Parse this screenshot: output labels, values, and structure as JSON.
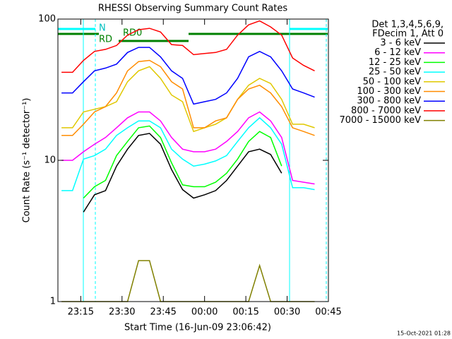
{
  "chart_data": {
    "type": "line",
    "title": "RHESSI Observing Summary Count Rates",
    "ylabel": "Count Rate (s⁻¹ detector⁻¹)",
    "xlabel": "Start Time (16-Jun-09 23:06:42)",
    "legend_header": [
      "Det 1,3,4,5,6,9,",
      "FDecim 1, Att 0"
    ],
    "footer": "15-Oct-2021 01:28",
    "annotations": [
      "N",
      "RD0",
      "RD"
    ],
    "log_y": true,
    "legend": "right",
    "xlim": [
      "23:06:42",
      "00:45"
    ],
    "xticks": [
      "23:15",
      "23:30",
      "23:45",
      "00:00",
      "00:15",
      "00:30",
      "00:45"
    ],
    "ylim": [
      1,
      100
    ],
    "yticks": [
      1,
      10,
      100
    ],
    "x": [
      "23:08",
      "23:12",
      "23:16",
      "23:20",
      "23:24",
      "23:28",
      "23:32",
      "23:36",
      "23:40",
      "23:44",
      "23:48",
      "23:52",
      "23:56",
      "00:00",
      "00:04",
      "00:08",
      "00:12",
      "00:16",
      "00:20",
      "00:24",
      "00:28",
      "00:32",
      "00:36",
      "00:40"
    ],
    "series": [
      {
        "name": "3 - 6 keV",
        "color": "#000000",
        "values": [
          null,
          null,
          4.3,
          5.7,
          6.1,
          9.1,
          12,
          15,
          15.5,
          13,
          8.6,
          6.2,
          5.4,
          5.7,
          6.1,
          7.2,
          9.1,
          11.5,
          12,
          11,
          8.1,
          null,
          null,
          null
        ]
      },
      {
        "name": "6 - 12 keV",
        "color": "#ff00ff",
        "values": [
          10,
          10,
          11.5,
          13,
          14.5,
          17,
          20,
          22,
          22,
          19,
          14.5,
          12,
          11.5,
          11.5,
          12,
          13.6,
          16,
          20,
          22,
          19,
          14.5,
          7.2,
          7,
          6.8
        ]
      },
      {
        "name": "12 - 25 keV",
        "color": "#00ff00",
        "values": [
          null,
          null,
          5.4,
          6.5,
          7.2,
          10.8,
          13.6,
          17,
          17.5,
          14.5,
          9.6,
          6.7,
          6.5,
          6.5,
          7,
          8.1,
          10.2,
          13.6,
          16,
          14.5,
          9.1,
          null,
          null,
          null
        ]
      },
      {
        "name": "25 - 50 keV",
        "color": "#00ffff",
        "values": [
          6.1,
          6.1,
          10.2,
          10.8,
          12,
          15,
          17,
          19,
          19,
          17,
          12,
          10.2,
          9.1,
          9.4,
          9.9,
          10.8,
          13.6,
          17,
          20,
          17,
          13,
          6.4,
          6.4,
          6.2
        ]
      },
      {
        "name": "50 - 100 keV",
        "color": "#e0c800",
        "values": [
          17,
          17,
          22,
          23,
          24,
          26,
          36,
          43,
          46,
          38,
          29,
          26,
          16,
          17,
          18,
          20,
          27,
          34,
          38,
          35,
          27,
          18,
          18,
          17
        ]
      },
      {
        "name": "100 - 300 keV",
        "color": "#ff8c00",
        "values": [
          15,
          15,
          18,
          22,
          24,
          30,
          43,
          50,
          51,
          46,
          36,
          32,
          17,
          17,
          19,
          20,
          27,
          32,
          34,
          30,
          24,
          17,
          16,
          15
        ]
      },
      {
        "name": "300 - 800 keV",
        "color": "#0000ff",
        "values": [
          30,
          30,
          36,
          43,
          45,
          48,
          58,
          63,
          63,
          54,
          43,
          38,
          25,
          26,
          27,
          30,
          38,
          54,
          59,
          54,
          43,
          32,
          30,
          28
        ]
      },
      {
        "name": "800 - 7000 keV",
        "color": "#ff0000",
        "values": [
          42,
          42,
          51,
          59,
          61,
          65,
          77,
          84,
          86,
          81,
          66,
          65,
          56,
          57,
          58,
          61,
          77,
          91,
          97,
          88,
          77,
          53,
          47,
          43
        ]
      },
      {
        "name": "7000 - 15000 keV",
        "color": "#808000",
        "values": [
          1,
          1,
          1,
          1,
          1,
          1,
          1,
          1.95,
          1.95,
          1,
          1,
          1,
          1,
          1,
          1,
          1,
          1,
          1,
          1.8,
          1,
          1,
          1,
          1,
          1
        ]
      }
    ]
  }
}
